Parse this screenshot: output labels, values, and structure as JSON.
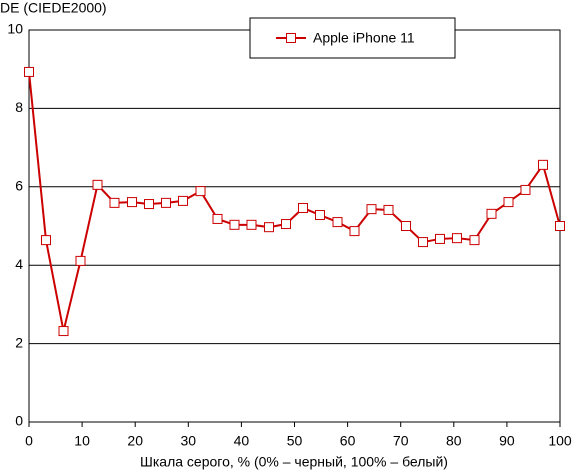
{
  "chart_data": {
    "type": "line",
    "y_label": "DE (CIEDE2000)",
    "x_label": "Шкала серого, % (0% – черный, 100% – белый)",
    "x": [
      0,
      3.2,
      6.5,
      9.7,
      12.9,
      16.1,
      19.4,
      22.6,
      25.8,
      29.0,
      32.3,
      35.5,
      38.7,
      41.9,
      45.2,
      48.4,
      51.6,
      54.8,
      58.1,
      61.3,
      64.5,
      67.7,
      71.0,
      74.2,
      77.4,
      80.6,
      83.9,
      87.1,
      90.3,
      93.5,
      96.8,
      100
    ],
    "series": [
      {
        "name": "Apple iPhone 11",
        "color": "#cc0000",
        "values": [
          8.93,
          4.64,
          2.32,
          4.11,
          6.05,
          5.59,
          5.61,
          5.56,
          5.59,
          5.64,
          5.89,
          5.18,
          5.03,
          5.03,
          4.97,
          5.05,
          5.46,
          5.28,
          5.1,
          4.87,
          5.43,
          5.41,
          5.0,
          4.59,
          4.67,
          4.69,
          4.64,
          5.31,
          5.61,
          5.92,
          6.56,
          5.0
        ]
      }
    ],
    "xlim": [
      0,
      100
    ],
    "ylim": [
      0,
      10
    ],
    "xticks": [
      0,
      10,
      20,
      30,
      40,
      50,
      60,
      70,
      80,
      90,
      100
    ],
    "yticks": [
      0,
      2,
      4,
      6,
      8,
      10
    ],
    "grid": true,
    "legend": "top"
  }
}
